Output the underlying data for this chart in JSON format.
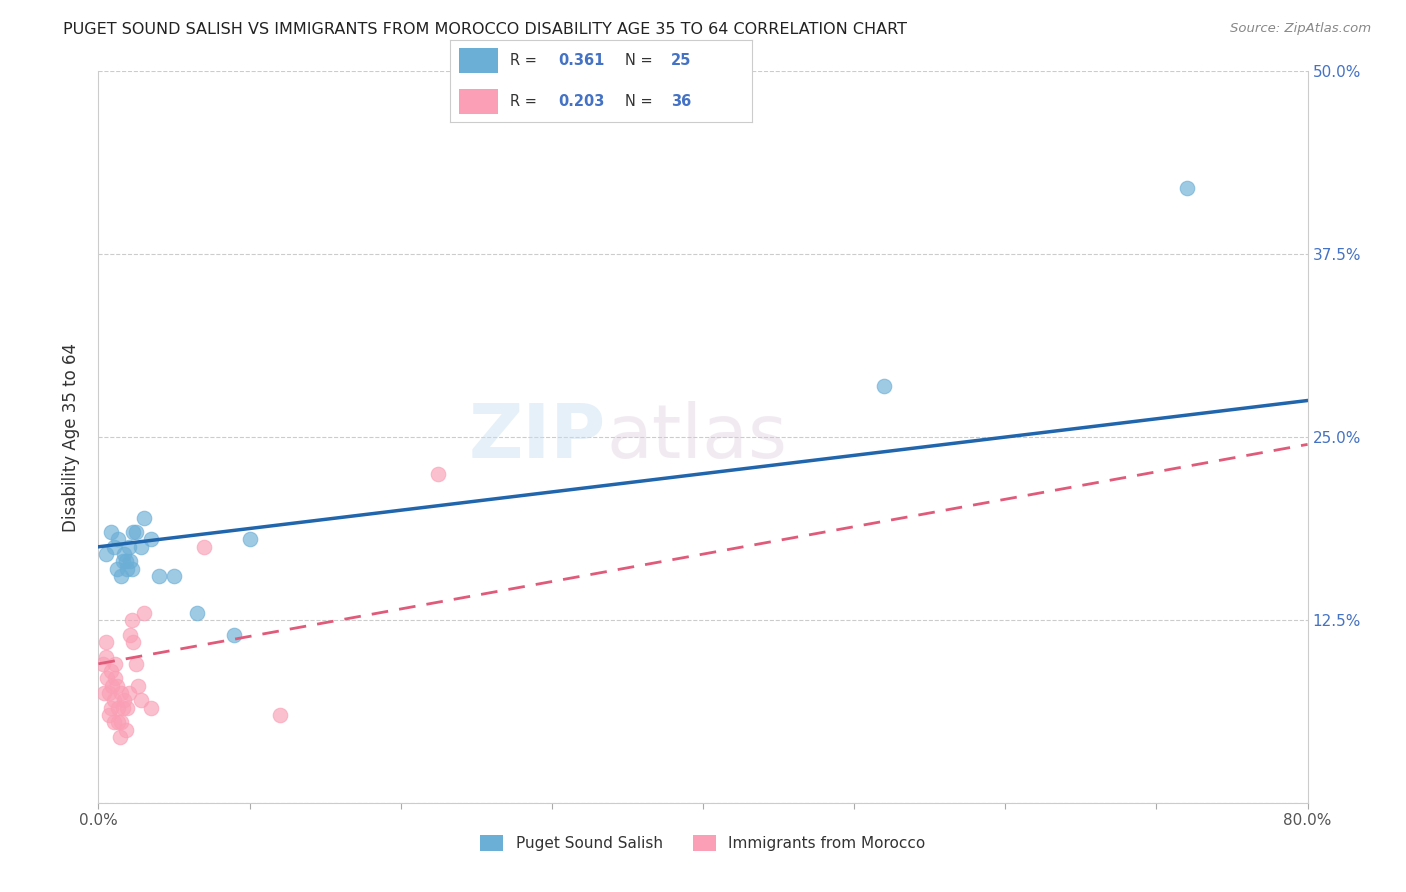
{
  "title": "PUGET SOUND SALISH VS IMMIGRANTS FROM MOROCCO DISABILITY AGE 35 TO 64 CORRELATION CHART",
  "source": "Source: ZipAtlas.com",
  "xlabel": "",
  "ylabel": "Disability Age 35 to 64",
  "xlim": [
    0.0,
    0.8
  ],
  "ylim": [
    0.0,
    0.5
  ],
  "xticks": [
    0.0,
    0.1,
    0.2,
    0.3,
    0.4,
    0.5,
    0.6,
    0.7,
    0.8
  ],
  "xticklabels": [
    "0.0%",
    "",
    "",
    "",
    "",
    "",
    "",
    "",
    "80.0%"
  ],
  "ytick_positions": [
    0.0,
    0.125,
    0.25,
    0.375,
    0.5
  ],
  "yticklabels_right": [
    "",
    "12.5%",
    "25.0%",
    "37.5%",
    "50.0%"
  ],
  "legend1_label": "Puget Sound Salish",
  "legend2_label": "Immigrants from Morocco",
  "R1": 0.361,
  "N1": 25,
  "R2": 0.203,
  "N2": 36,
  "color1": "#6baed6",
  "color2": "#fa9fb5",
  "line1_color": "#2166ac",
  "line2_color": "#e05a7a",
  "watermark": "ZIPatlas",
  "line1_x": [
    0.0,
    0.8
  ],
  "line1_y": [
    0.175,
    0.275
  ],
  "line2_x": [
    0.0,
    0.8
  ],
  "line2_y": [
    0.095,
    0.245
  ],
  "blue_points_x": [
    0.005,
    0.008,
    0.01,
    0.012,
    0.013,
    0.015,
    0.016,
    0.017,
    0.018,
    0.019,
    0.02,
    0.021,
    0.022,
    0.023,
    0.025,
    0.028,
    0.03,
    0.035,
    0.04,
    0.05,
    0.065,
    0.09,
    0.1,
    0.52,
    0.72
  ],
  "blue_points_y": [
    0.17,
    0.185,
    0.175,
    0.16,
    0.18,
    0.155,
    0.165,
    0.17,
    0.165,
    0.16,
    0.175,
    0.165,
    0.16,
    0.185,
    0.185,
    0.175,
    0.195,
    0.18,
    0.155,
    0.155,
    0.13,
    0.115,
    0.18,
    0.285,
    0.42
  ],
  "pink_points_x": [
    0.003,
    0.004,
    0.005,
    0.005,
    0.006,
    0.007,
    0.007,
    0.008,
    0.008,
    0.009,
    0.01,
    0.01,
    0.011,
    0.011,
    0.012,
    0.013,
    0.013,
    0.014,
    0.015,
    0.015,
    0.016,
    0.017,
    0.018,
    0.019,
    0.02,
    0.021,
    0.022,
    0.023,
    0.025,
    0.026,
    0.028,
    0.03,
    0.035,
    0.07,
    0.12,
    0.225
  ],
  "pink_points_y": [
    0.095,
    0.075,
    0.1,
    0.11,
    0.085,
    0.06,
    0.075,
    0.09,
    0.065,
    0.08,
    0.055,
    0.07,
    0.085,
    0.095,
    0.08,
    0.055,
    0.065,
    0.045,
    0.055,
    0.075,
    0.065,
    0.07,
    0.05,
    0.065,
    0.075,
    0.115,
    0.125,
    0.11,
    0.095,
    0.08,
    0.07,
    0.13,
    0.065,
    0.175,
    0.06,
    0.225
  ]
}
